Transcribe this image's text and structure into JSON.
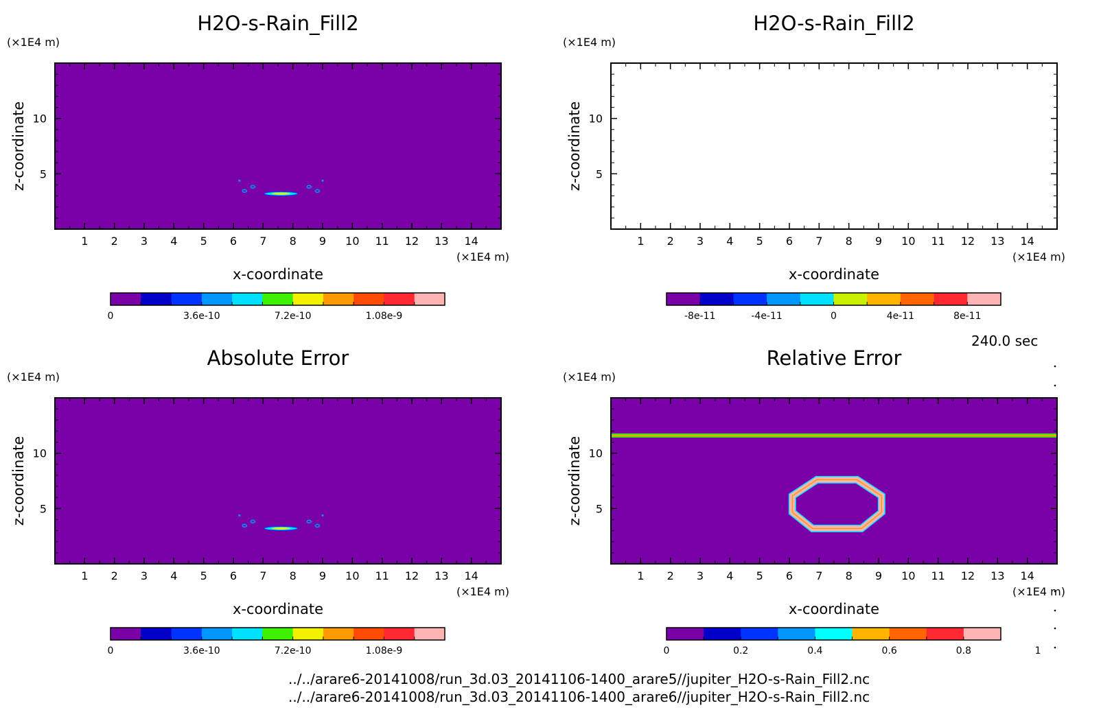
{
  "time_label": "240.0 sec",
  "footer": [
    "../../arare6-20141008/run_3d.03_20141106-1400_arare5//jupiter_H2O-s-Rain_Fill2.nc",
    "../../arare6-20141008/run_3d.03_20141106-1400_arare6//jupiter_H2O-s-Rain_Fill2.nc"
  ],
  "colors": {
    "palette": [
      "#7a00a8",
      "#0000c8",
      "#0032ff",
      "#0096ff",
      "#00e1ff",
      "#3cf000",
      "#f0f000",
      "#ff9b00",
      "#ff4b00",
      "#ff2832",
      "#ffb4b4"
    ]
  },
  "chart_data": [
    {
      "type": "heatmap",
      "title": "H2O-s-Rain_Fill2",
      "xlabel": "x-coordinate",
      "ylabel": "z-coordinate",
      "x_unit": "(×1E4 m)",
      "y_unit": "(×1E4 m)",
      "xlim": [
        0,
        15
      ],
      "ylim": [
        0,
        15
      ],
      "xticks": [
        "1",
        "2",
        "3",
        "4",
        "5",
        "6",
        "7",
        "8",
        "9",
        "10",
        "11",
        "12",
        "13",
        "14"
      ],
      "yticks": [
        "5",
        "10"
      ],
      "background": "#7a00a8",
      "features": [
        {
          "kind": "arc",
          "x_center": 7.6,
          "z_base": 3.2,
          "x_halfwidth": 0.7,
          "z_range": [
            3.0,
            4.5
          ]
        }
      ],
      "colorbar": {
        "colors": [
          "#7a00a8",
          "#0000c8",
          "#0032ff",
          "#0096ff",
          "#00e1ff",
          "#3cf000",
          "#f0f000",
          "#ff9b00",
          "#ff4b00",
          "#ff2832",
          "#ffb4b4"
        ],
        "labels": [
          {
            "text": "0",
            "pos": 0
          },
          {
            "text": "3.6e-10",
            "pos": 3
          },
          {
            "text": "7.2e-10",
            "pos": 6
          },
          {
            "text": "1.08e-9",
            "pos": 9
          }
        ]
      }
    },
    {
      "type": "heatmap",
      "title": "H2O-s-Rain_Fill2",
      "xlabel": "x-coordinate",
      "ylabel": "z-coordinate",
      "x_unit": "(×1E4 m)",
      "y_unit": "(×1E4 m)",
      "xlim": [
        0,
        15
      ],
      "ylim": [
        0,
        15
      ],
      "xticks": [
        "1",
        "2",
        "3",
        "4",
        "5",
        "6",
        "7",
        "8",
        "9",
        "10",
        "11",
        "12",
        "13",
        "14"
      ],
      "yticks": [
        "5",
        "10"
      ],
      "background": "#ffffff",
      "features": [],
      "colorbar": {
        "colors": [
          "#7a00a8",
          "#0000c8",
          "#0032ff",
          "#0096ff",
          "#00e1ff",
          "#c8f000",
          "#ffb400",
          "#ff6400",
          "#ff2832",
          "#ffb4b4"
        ],
        "labels": [
          {
            "text": "-8e-11",
            "pos": 1
          },
          {
            "text": "-4e-11",
            "pos": 3
          },
          {
            "text": "0",
            "pos": 5
          },
          {
            "text": "4e-11",
            "pos": 7
          },
          {
            "text": "8e-11",
            "pos": 9
          }
        ]
      }
    },
    {
      "type": "heatmap",
      "title": "Absolute Error",
      "xlabel": "x-coordinate",
      "ylabel": "z-coordinate",
      "x_unit": "(×1E4 m)",
      "y_unit": "(×1E4 m)",
      "xlim": [
        0,
        15
      ],
      "ylim": [
        0,
        15
      ],
      "xticks": [
        "1",
        "2",
        "3",
        "4",
        "5",
        "6",
        "7",
        "8",
        "9",
        "10",
        "11",
        "12",
        "13",
        "14"
      ],
      "yticks": [
        "5",
        "10"
      ],
      "background": "#7a00a8",
      "features": [
        {
          "kind": "arc",
          "x_center": 7.6,
          "z_base": 3.2,
          "x_halfwidth": 0.7,
          "z_range": [
            3.0,
            4.5
          ]
        }
      ],
      "colorbar": {
        "colors": [
          "#7a00a8",
          "#0000c8",
          "#0032ff",
          "#0096ff",
          "#00e1ff",
          "#3cf000",
          "#f0f000",
          "#ff9b00",
          "#ff4b00",
          "#ff2832",
          "#ffb4b4"
        ],
        "labels": [
          {
            "text": "0",
            "pos": 0
          },
          {
            "text": "3.6e-10",
            "pos": 3
          },
          {
            "text": "7.2e-10",
            "pos": 6
          },
          {
            "text": "1.08e-9",
            "pos": 9
          }
        ]
      }
    },
    {
      "type": "heatmap",
      "title": "Relative Error",
      "xlabel": "x-coordinate",
      "ylabel": "z-coordinate",
      "x_unit": "(×1E4 m)",
      "y_unit": "(×1E4 m)",
      "xlim": [
        0,
        15
      ],
      "ylim": [
        0,
        15
      ],
      "xticks": [
        "1",
        "2",
        "3",
        "4",
        "5",
        "6",
        "7",
        "8",
        "9",
        "10",
        "11",
        "12",
        "13",
        "14"
      ],
      "yticks": [
        "5",
        "10"
      ],
      "background": "#7a00a8",
      "features": [
        {
          "kind": "hline",
          "z": 11.6
        },
        {
          "kind": "ring",
          "x_center": 7.6,
          "z_center": 5.4,
          "x_halfwidth": 1.5,
          "z_range": [
            3.2,
            7.6
          ]
        }
      ],
      "colorbar": {
        "colors": [
          "#7a00a8",
          "#0000c8",
          "#0032ff",
          "#0096ff",
          "#00ffff",
          "#ffb400",
          "#ff6400",
          "#ff2832",
          "#ffb4b4"
        ],
        "labels": [
          {
            "text": "0",
            "pos": 0
          },
          {
            "text": "0.2",
            "pos": 2
          },
          {
            "text": "0.4",
            "pos": 4
          },
          {
            "text": "0.6",
            "pos": 6
          },
          {
            "text": "0.8",
            "pos": 8
          },
          {
            "text": "1",
            "pos": 10
          }
        ]
      }
    }
  ]
}
